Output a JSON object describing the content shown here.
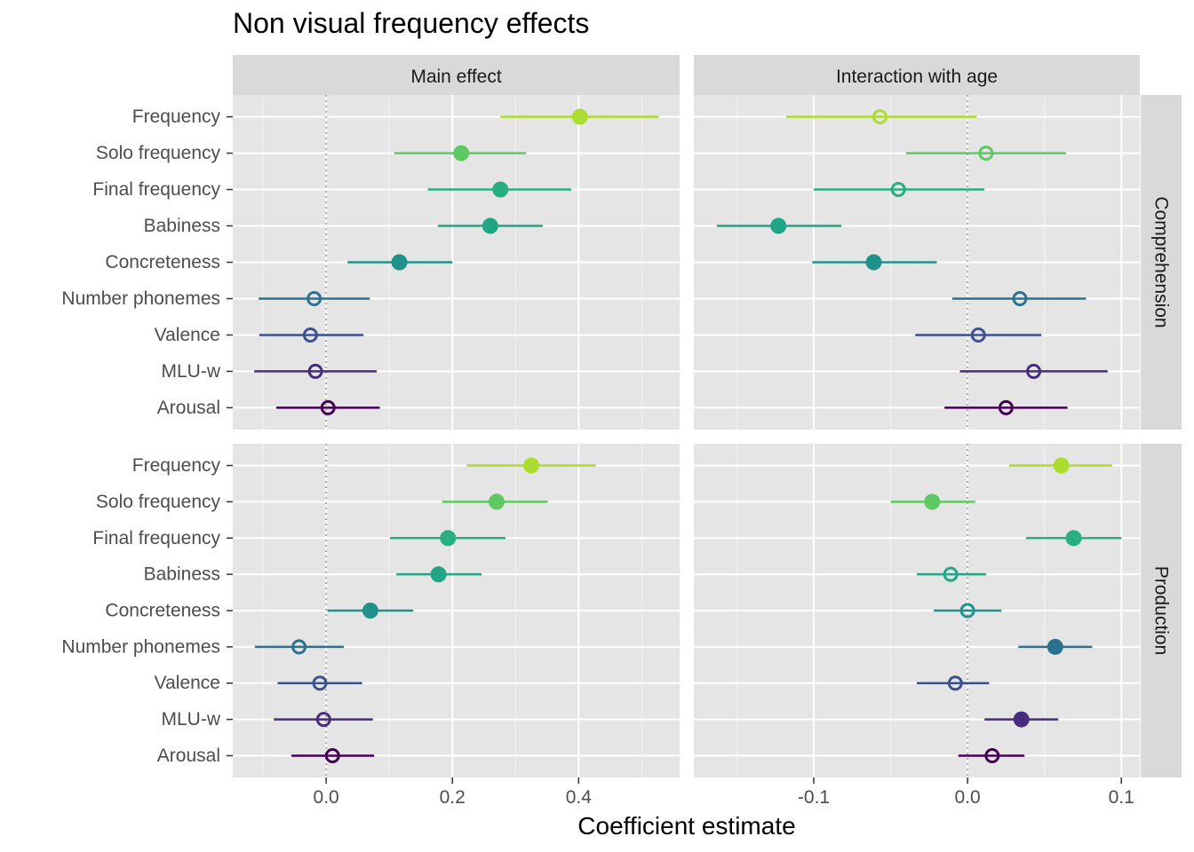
{
  "title": "Non visual frequency effects",
  "chart_data": {
    "type": "scatter",
    "title": "Non visual frequency effects",
    "xlabel": "Coefficient estimate",
    "ylabel": "",
    "grid": true,
    "facet_columns": [
      "Main effect",
      "Interaction with age"
    ],
    "facet_rows": [
      "Comprehension",
      "Production"
    ],
    "categories": [
      "Frequency",
      "Solo frequency",
      "Final frequency",
      "Babiness",
      "Concreteness",
      "Number phonemes",
      "Valence",
      "MLU-w",
      "Arousal"
    ],
    "colors": {
      "Frequency": "#addc30",
      "Solo frequency": "#5ec962",
      "Final frequency": "#28ae80",
      "Babiness": "#21a685",
      "Concreteness": "#21918c",
      "Number phonemes": "#2c728e",
      "Valence": "#3b528b",
      "MLU-w": "#472d7b",
      "Arousal": "#440154"
    },
    "legend_note": "filled circle = significant estimate, open circle = not significant",
    "x_axes": {
      "Main effect": {
        "xlim": [
          -0.148,
          0.56
        ],
        "ticks": [
          0.0,
          0.2,
          0.4
        ],
        "tick_labels": [
          "0.0",
          "0.2",
          "0.4"
        ]
      },
      "Interaction with age": {
        "xlim": [
          -0.178,
          0.112
        ],
        "ticks": [
          -0.1,
          0.0,
          0.1
        ],
        "tick_labels": [
          "-0.1",
          "0.0",
          "0.1"
        ]
      }
    },
    "panels": [
      {
        "row": "Comprehension",
        "column": "Main effect",
        "estimates": [
          0.402,
          0.214,
          0.276,
          0.26,
          0.116,
          -0.019,
          -0.025,
          -0.017,
          0.003
        ],
        "lower": [
          0.276,
          0.108,
          0.161,
          0.177,
          0.034,
          -0.107,
          -0.106,
          -0.114,
          -0.079
        ],
        "upper": [
          0.527,
          0.317,
          0.388,
          0.343,
          0.2,
          0.069,
          0.059,
          0.08,
          0.085
        ],
        "significant": [
          true,
          true,
          true,
          true,
          true,
          false,
          false,
          false,
          false
        ]
      },
      {
        "row": "Comprehension",
        "column": "Interaction with age",
        "estimates": [
          -0.057,
          0.012,
          -0.045,
          -0.123,
          -0.061,
          0.034,
          0.007,
          0.043,
          0.025
        ],
        "lower": [
          -0.118,
          -0.04,
          -0.1,
          -0.163,
          -0.101,
          -0.01,
          -0.034,
          -0.005,
          -0.015
        ],
        "upper": [
          0.006,
          0.064,
          0.011,
          -0.082,
          -0.02,
          0.077,
          0.048,
          0.091,
          0.065
        ],
        "significant": [
          false,
          false,
          false,
          true,
          true,
          false,
          false,
          false,
          false
        ]
      },
      {
        "row": "Production",
        "column": "Main effect",
        "estimates": [
          0.325,
          0.27,
          0.193,
          0.178,
          0.07,
          -0.043,
          -0.01,
          -0.004,
          0.01
        ],
        "lower": [
          0.223,
          0.184,
          0.101,
          0.111,
          0.002,
          -0.113,
          -0.077,
          -0.083,
          -0.055
        ],
        "upper": [
          0.427,
          0.351,
          0.284,
          0.246,
          0.138,
          0.028,
          0.057,
          0.074,
          0.076
        ],
        "significant": [
          true,
          true,
          true,
          true,
          true,
          false,
          false,
          false,
          false
        ]
      },
      {
        "row": "Production",
        "column": "Interaction with age",
        "estimates": [
          0.061,
          -0.023,
          0.069,
          -0.011,
          0.0,
          0.057,
          -0.008,
          0.035,
          0.016
        ],
        "lower": [
          0.027,
          -0.05,
          0.038,
          -0.033,
          -0.022,
          0.033,
          -0.033,
          0.011,
          -0.006
        ],
        "upper": [
          0.094,
          0.005,
          0.1,
          0.012,
          0.022,
          0.081,
          0.014,
          0.059,
          0.037
        ],
        "significant": [
          true,
          true,
          true,
          false,
          false,
          true,
          false,
          true,
          false
        ]
      }
    ]
  }
}
